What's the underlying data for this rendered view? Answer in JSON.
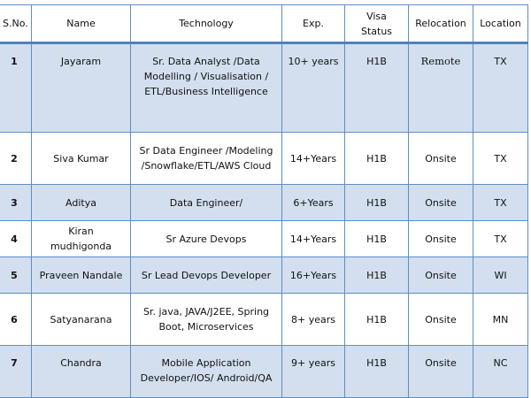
{
  "table": {
    "headers": [
      "S.No.",
      "Name",
      "Technology",
      "Exp.",
      "Visa Status",
      "Relocation",
      "Location"
    ],
    "rows": [
      {
        "sno": "1",
        "name": "Jayaram",
        "technology": "Sr. Data Analyst /Data Modelling / Visualisation / ETL/Business Intelligence",
        "exp": "10+ years",
        "visa": "H1B",
        "relocation": "Remote",
        "location": "TX"
      },
      {
        "sno": "2",
        "name": "Siva Kumar",
        "technology": "Sr Data Engineer /Modeling /Snowflake/ETL/AWS Cloud",
        "exp": "14+Years",
        "visa": "H1B",
        "relocation": "Onsite",
        "location": "TX"
      },
      {
        "sno": "3",
        "name": "Aditya",
        "technology": "Data Engineer/",
        "exp": "6+Years",
        "visa": "H1B",
        "relocation": "Onsite",
        "location": "TX"
      },
      {
        "sno": "4",
        "name": "Kiran mudhigonda",
        "technology": "Sr Azure Devops",
        "exp": "14+Years",
        "visa": "H1B",
        "relocation": "Onsite",
        "location": "TX"
      },
      {
        "sno": "5",
        "name": "Praveen Nandale",
        "technology": "Sr Lead Devops Developer",
        "exp": "16+Years",
        "visa": "H1B",
        "relocation": "Onsite",
        "location": "WI"
      },
      {
        "sno": "6",
        "name": "Satyanarana",
        "technology": "Sr.  java, JAVA/J2EE, Spring Boot, Microservices",
        "exp": "8+ years",
        "visa": "H1B",
        "relocation": "Onsite",
        "location": "MN"
      },
      {
        "sno": "7",
        "name": "Chandra",
        "technology": "Mobile Application Developer/IOS/ Android/QA",
        "exp": "9+ years",
        "visa": "H1B",
        "relocation": "Onsite",
        "location": "NC"
      }
    ]
  }
}
